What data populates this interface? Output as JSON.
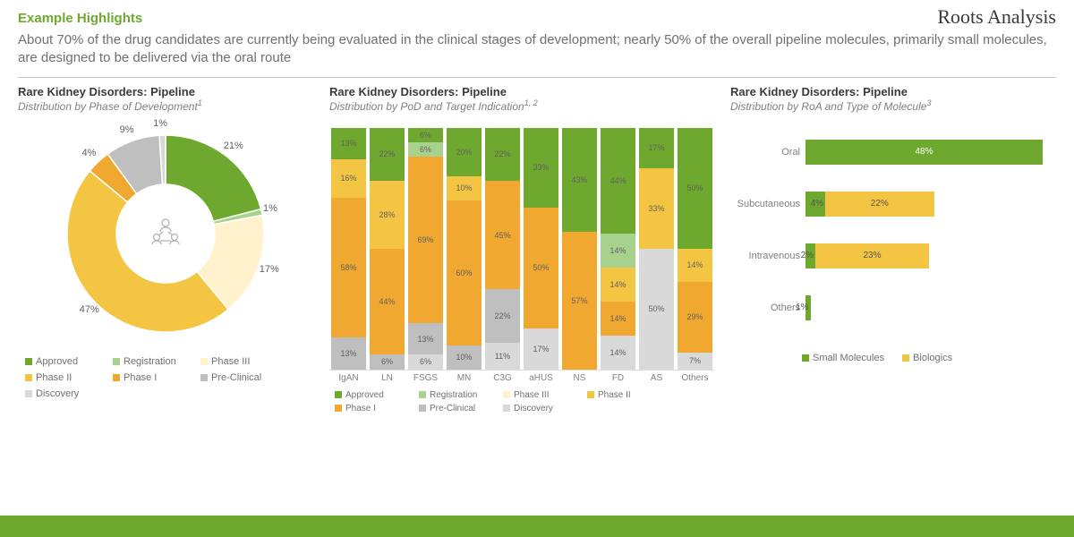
{
  "brand": "Roots Analysis",
  "section_title": "Example Highlights",
  "subtitle": "About 70% of the drug candidates are currently being evaluated in the clinical stages of development; nearly 50% of the overall pipeline molecules, primarily small molecules, are designed to be delivered via the oral route",
  "colors": {
    "approved": "#6fa82e",
    "registration": "#a9d18e",
    "phase3": "#fff2cc",
    "phase2": "#f4c542",
    "phase1": "#f0a830",
    "preclinical": "#bfbfbf",
    "discovery": "#d9d9d9",
    "small_molecules": "#6fa82e",
    "biologics": "#f4c542",
    "accent": "#6fa82e",
    "text_gray": "#808080"
  },
  "panel1": {
    "title": "Rare Kidney Disorders: Pipeline",
    "subtitle": "Distribution by Phase of Development",
    "supnote": "1",
    "type": "donut",
    "slices": [
      {
        "label": "Approved",
        "value": 21,
        "color": "#6fa82e"
      },
      {
        "label": "Registration",
        "value": 1,
        "color": "#a9d18e"
      },
      {
        "label": "Phase III",
        "value": 17,
        "color": "#fff2cc"
      },
      {
        "label": "Phase II",
        "value": 47,
        "color": "#f4c542"
      },
      {
        "label": "Phase I",
        "value": 4,
        "color": "#f0a830"
      },
      {
        "label": "Pre-Clinical",
        "value": 9,
        "color": "#bfbfbf"
      },
      {
        "label": "Discovery",
        "value": 1,
        "color": "#d9d9d9"
      }
    ],
    "legend": [
      "Approved",
      "Registration",
      "Phase III",
      "Phase II",
      "Phase I",
      "Pre-Clinical",
      "Discovery"
    ]
  },
  "panel2": {
    "title": "Rare Kidney Disorders: Pipeline",
    "subtitle": "Distribution by PoD and Target Indication",
    "supnote": "1, 2",
    "type": "stacked_bar",
    "categories": [
      "IgAN",
      "LN",
      "FSGS",
      "MN",
      "C3G",
      "aHUS",
      "NS",
      "FD",
      "AS",
      "Others"
    ],
    "series_order": [
      "approved",
      "registration",
      "phase3",
      "phase2",
      "phase1",
      "preclinical",
      "discovery"
    ],
    "stacks": [
      {
        "cat": "IgAN",
        "segs": [
          {
            "k": "approved",
            "v": 13
          },
          {
            "k": "phase2",
            "v": 16
          },
          {
            "k": "phase1",
            "v": 58
          },
          {
            "k": "preclinical",
            "v": 13
          }
        ]
      },
      {
        "cat": "LN",
        "segs": [
          {
            "k": "approved",
            "v": 22
          },
          {
            "k": "phase2",
            "v": 28
          },
          {
            "k": "phase1",
            "v": 44
          },
          {
            "k": "preclinical",
            "v": 6
          }
        ]
      },
      {
        "cat": "FSGS",
        "segs": [
          {
            "k": "approved",
            "v": 6
          },
          {
            "k": "registration",
            "v": 6
          },
          {
            "k": "phase1",
            "v": 69
          },
          {
            "k": "preclinical",
            "v": 13
          },
          {
            "k": "discovery",
            "v": 6
          }
        ]
      },
      {
        "cat": "MN",
        "segs": [
          {
            "k": "approved",
            "v": 20
          },
          {
            "k": "phase2",
            "v": 10
          },
          {
            "k": "phase1",
            "v": 60
          },
          {
            "k": "preclinical",
            "v": 10
          }
        ]
      },
      {
        "cat": "C3G",
        "segs": [
          {
            "k": "approved",
            "v": 22
          },
          {
            "k": "phase1",
            "v": 45
          },
          {
            "k": "preclinical",
            "v": 22
          },
          {
            "k": "discovery",
            "v": 11
          }
        ]
      },
      {
        "cat": "aHUS",
        "segs": [
          {
            "k": "approved",
            "v": 33
          },
          {
            "k": "phase1",
            "v": 50
          },
          {
            "k": "discovery",
            "v": 17
          }
        ]
      },
      {
        "cat": "NS",
        "segs": [
          {
            "k": "approved",
            "v": 43
          },
          {
            "k": "phase1",
            "v": 57
          }
        ]
      },
      {
        "cat": "FD",
        "segs": [
          {
            "k": "approved",
            "v": 44
          },
          {
            "k": "registration",
            "v": 14
          },
          {
            "k": "phase2",
            "v": 14
          },
          {
            "k": "phase1",
            "v": 14
          },
          {
            "k": "discovery",
            "v": 14
          }
        ]
      },
      {
        "cat": "AS",
        "segs": [
          {
            "k": "approved",
            "v": 17
          },
          {
            "k": "phase2",
            "v": 33
          },
          {
            "k": "discovery",
            "v": 50
          }
        ]
      },
      {
        "cat": "Others",
        "segs": [
          {
            "k": "approved",
            "v": 50
          },
          {
            "k": "phase2",
            "v": 14
          },
          {
            "k": "phase1",
            "v": 29
          },
          {
            "k": "discovery",
            "v": 7
          }
        ]
      }
    ],
    "legend": [
      "Approved",
      "Registration",
      "Phase III",
      "Phase II",
      "Phase I",
      "Pre-Clinical",
      "Discovery"
    ]
  },
  "panel3": {
    "title": "Rare Kidney Disorders: Pipeline",
    "subtitle": "Distribution by RoA and Type of Molecule",
    "supnote": "3",
    "type": "stacked_hbar",
    "max": 50,
    "rows": [
      {
        "label": "Oral",
        "segs": [
          {
            "k": "small_molecules",
            "v": 48
          }
        ]
      },
      {
        "label": "Subcutaneous",
        "segs": [
          {
            "k": "small_molecules",
            "v": 4
          },
          {
            "k": "biologics",
            "v": 22
          }
        ]
      },
      {
        "label": "Intravenous",
        "segs": [
          {
            "k": "small_molecules",
            "v": 2
          },
          {
            "k": "biologics",
            "v": 23
          }
        ]
      },
      {
        "label": "Others",
        "segs": [
          {
            "k": "small_molecules",
            "v": 1
          }
        ]
      }
    ],
    "legend": [
      {
        "label": "Small Molecules",
        "k": "small_molecules"
      },
      {
        "label": "Biologics",
        "k": "biologics"
      }
    ]
  }
}
